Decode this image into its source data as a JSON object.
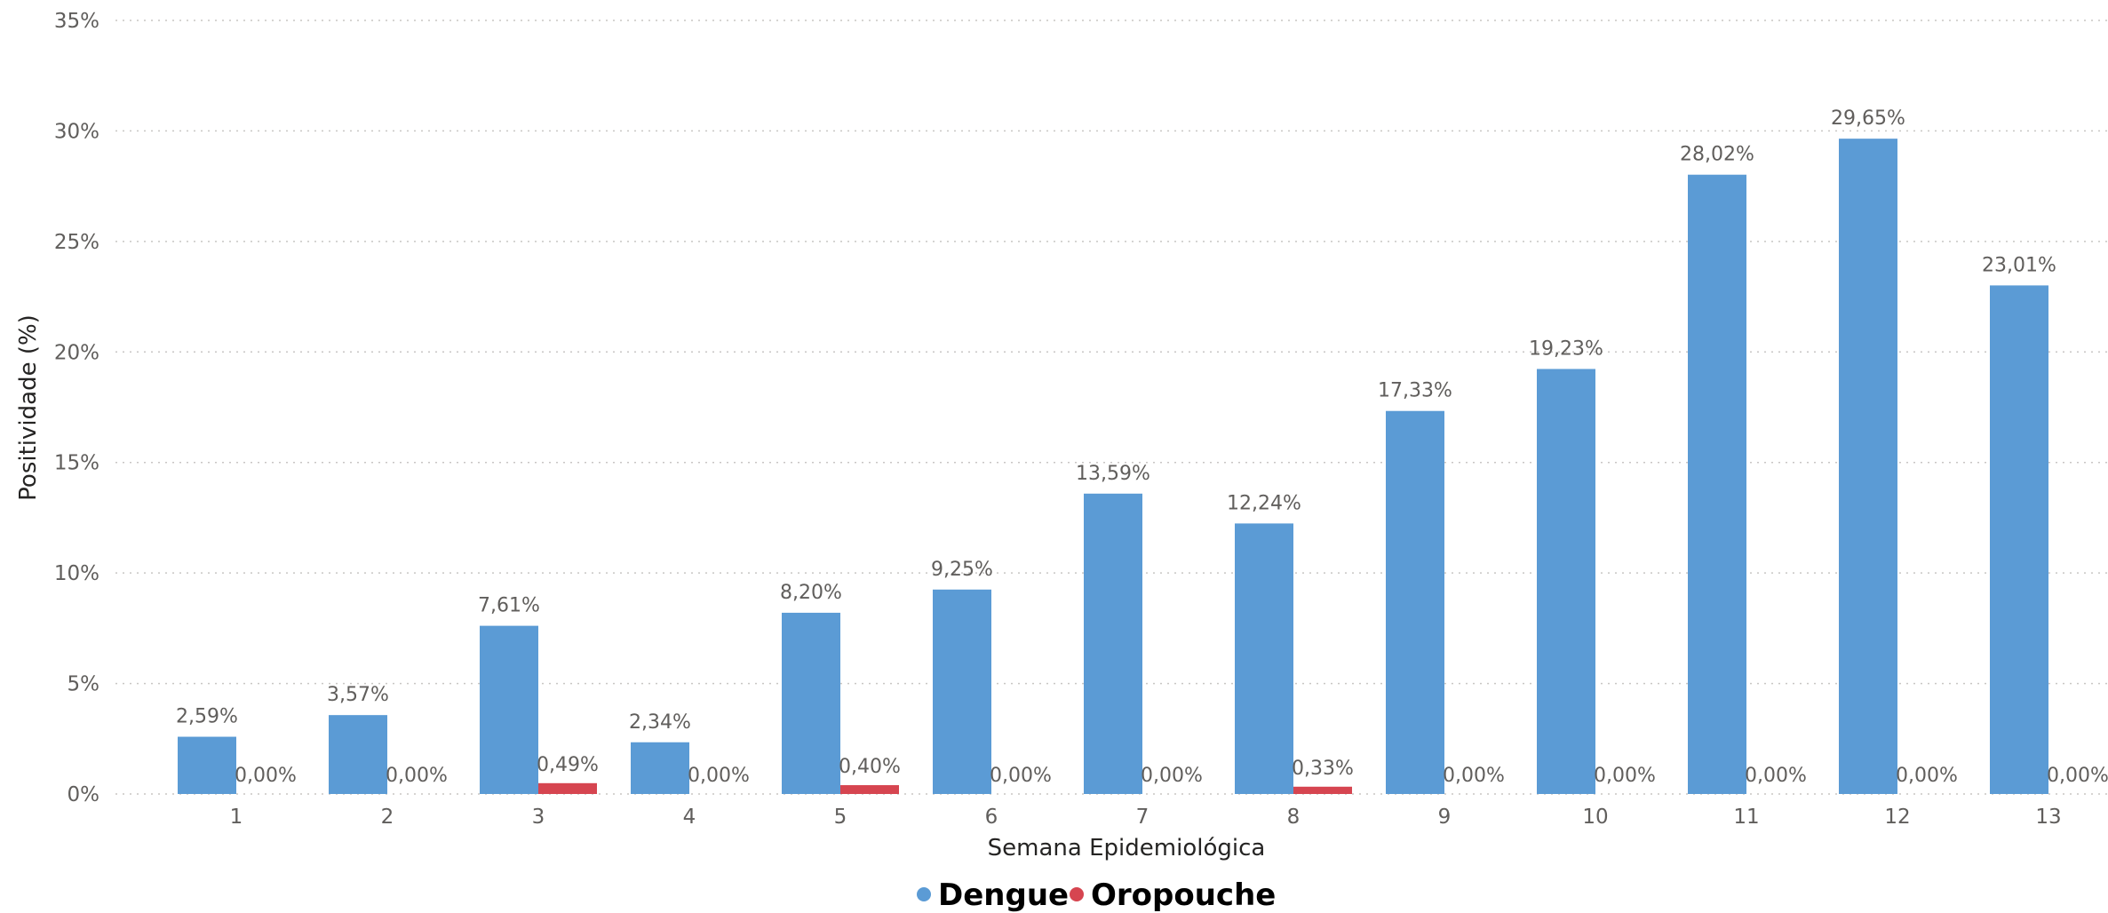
{
  "chart_data": {
    "type": "bar",
    "xlabel": "Semana Epidemiológica",
    "ylabel": "Positividade (%)",
    "ylim": [
      0,
      35
    ],
    "yticks": [
      0,
      5,
      10,
      15,
      20,
      25,
      30,
      35
    ],
    "ytick_suffix": "%",
    "grid": "horizontal-dotted",
    "legend_position": "bottom-center",
    "categories": [
      "1",
      "2",
      "3",
      "4",
      "5",
      "6",
      "7",
      "8",
      "9",
      "10",
      "11",
      "12",
      "13"
    ],
    "series": [
      {
        "name": "Dengue",
        "color": "#5b9bd5",
        "values": [
          2.59,
          3.57,
          7.61,
          2.34,
          8.2,
          9.25,
          13.59,
          12.24,
          17.33,
          19.23,
          28.02,
          29.65,
          23.01
        ],
        "labels": [
          "2,59%",
          "3,57%",
          "7,61%",
          "2,34%",
          "8,20%",
          "9,25%",
          "13,59%",
          "12,24%",
          "17,33%",
          "19,23%",
          "28,02%",
          "29,65%",
          "23,01%"
        ]
      },
      {
        "name": "Oropouche",
        "color": "#d64550",
        "values": [
          0.0,
          0.0,
          0.49,
          0.0,
          0.4,
          0.0,
          0.0,
          0.33,
          0.0,
          0.0,
          0.0,
          0.0,
          0.0
        ],
        "labels": [
          "0,00%",
          "0,00%",
          "0,49%",
          "0,00%",
          "0,40%",
          "0,00%",
          "0,00%",
          "0,33%",
          "0,00%",
          "0,00%",
          "0,00%",
          "0,00%",
          "0,00%"
        ]
      }
    ]
  }
}
